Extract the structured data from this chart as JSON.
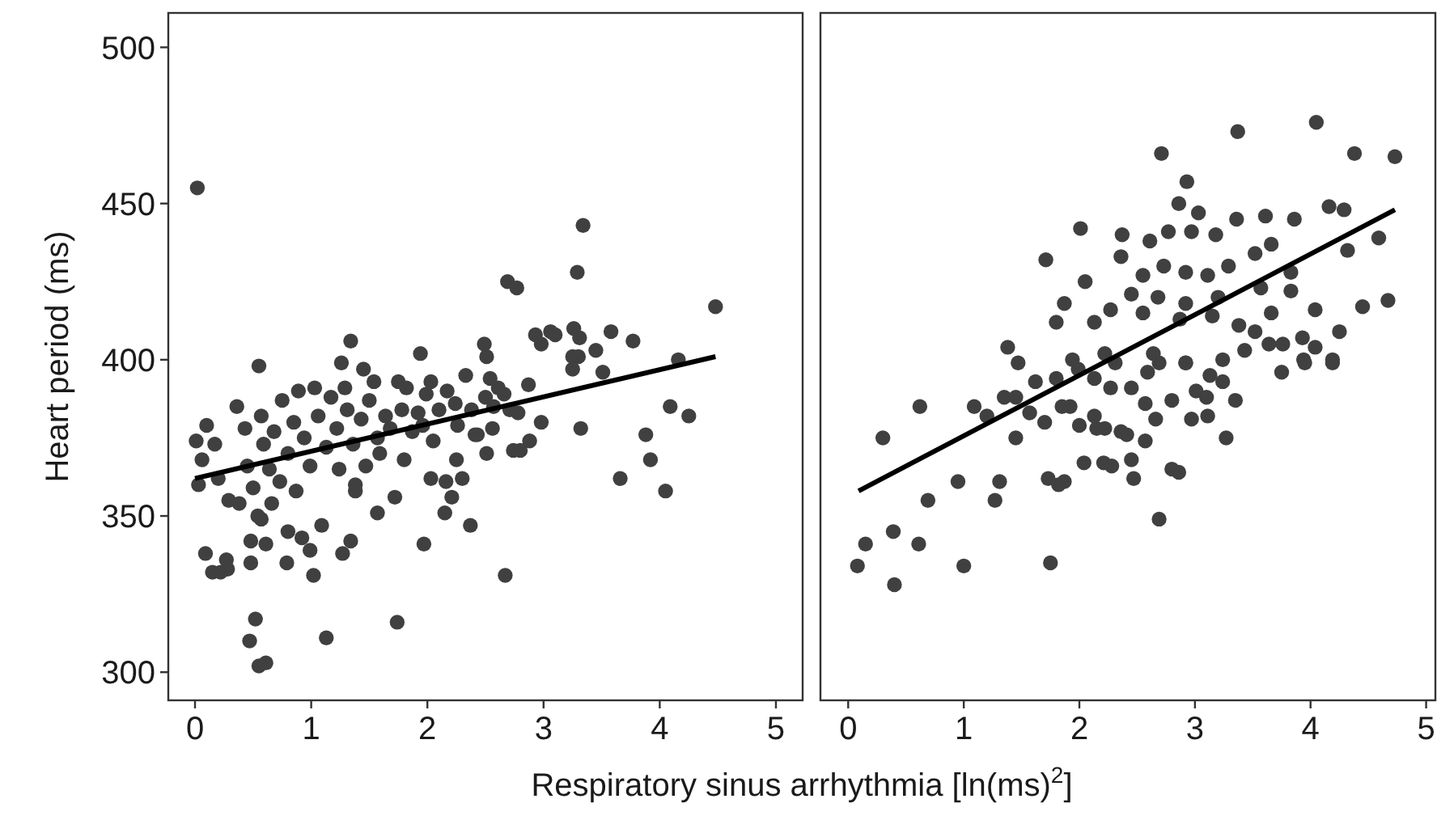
{
  "chart_data": [
    {
      "type": "scatter",
      "ylabel": "Heart period (ms)",
      "xlabel": "Respiratory sinus arrhythmia [ln(ms)$^{2}$]",
      "xlim": [
        -0.23,
        5.23
      ],
      "xticks": [
        0,
        1,
        2,
        3,
        4,
        5
      ],
      "ylim": [
        291,
        511
      ],
      "yticks": [
        300,
        350,
        400,
        450,
        500
      ],
      "grid": false,
      "series": [
        {
          "marker": "circle",
          "color": "#404040",
          "x": [
            0.02,
            0.55,
            1.34,
            1.26,
            1.45,
            1.94,
            2.49,
            2.51,
            2.69,
            2.77,
            2.93,
            2.98,
            3.06,
            3.1,
            3.34,
            3.29,
            3.26,
            3.31,
            3.25,
            3.3,
            3.45,
            3.58,
            3.77,
            4.16,
            4.48,
            3.25,
            3.51,
            4.09,
            4.25,
            3.32,
            3.88,
            3.92,
            3.66,
            4.05,
            2.88,
            2.74,
            2.8,
            2.67,
            2.37,
            2.15,
            2.21,
            2.3,
            2.16,
            2.03,
            2.25,
            2.51,
            2.41,
            2.56,
            1.97,
            1.74,
            1.72,
            1.57,
            1.38,
            1.34,
            1.27,
            1.13,
            1.09,
            0.99,
            1.02,
            0.92,
            0.8,
            0.79,
            0.66,
            0.61,
            0.48,
            0.48,
            0.54,
            0.57,
            0.52,
            0.47,
            0.55,
            0.61,
            0.09,
            0.15,
            0.22,
            0.28,
            0.27,
            0.01,
            0.06,
            0.03,
            0.1,
            0.17,
            0.2,
            0.29,
            0.36,
            0.38,
            0.43,
            0.45,
            0.5,
            0.57,
            0.59,
            0.64,
            0.68,
            0.73,
            0.75,
            0.8,
            0.85,
            0.87,
            0.89,
            0.94,
            0.99,
            1.03,
            1.06,
            1.13,
            1.17,
            1.22,
            1.24,
            1.29,
            1.31,
            1.36,
            1.38,
            1.43,
            1.47,
            1.5,
            1.54,
            1.57,
            1.59,
            1.64,
            1.68,
            1.75,
            1.78,
            1.8,
            1.82,
            1.87,
            1.92,
            1.96,
            1.99,
            2.03,
            2.05,
            2.1,
            2.17,
            2.24,
            2.26,
            2.33,
            2.38,
            2.43,
            2.5,
            2.54,
            2.57,
            2.61,
            2.66,
            2.71,
            2.78,
            2.87,
            2.98
          ],
          "values": [
            455,
            398,
            406,
            399,
            397,
            402,
            405,
            401,
            425,
            423,
            408,
            405,
            409,
            408,
            443,
            428,
            410,
            407,
            401,
            401,
            403,
            409,
            406,
            400,
            417,
            397,
            396,
            385,
            382,
            378,
            376,
            368,
            362,
            358,
            374,
            371,
            371,
            331,
            347,
            351,
            356,
            362,
            361,
            362,
            368,
            370,
            376,
            378,
            341,
            316,
            356,
            351,
            358,
            342,
            338,
            311,
            347,
            339,
            331,
            343,
            345,
            335,
            354,
            341,
            342,
            335,
            350,
            349,
            317,
            310,
            302,
            303,
            338,
            332,
            332,
            333,
            336,
            374,
            368,
            360,
            379,
            373,
            362,
            355,
            385,
            354,
            378,
            366,
            359,
            382,
            373,
            365,
            377,
            361,
            387,
            370,
            380,
            358,
            390,
            375,
            366,
            391,
            382,
            372,
            388,
            378,
            365,
            391,
            384,
            373,
            360,
            381,
            366,
            387,
            393,
            375,
            370,
            382,
            378,
            393,
            384,
            368,
            391,
            377,
            383,
            379,
            389,
            393,
            374,
            384,
            390,
            386,
            379,
            395,
            384,
            376,
            388,
            394,
            385,
            391,
            389,
            384,
            383,
            392,
            380
          ]
        },
        {
          "type": "line",
          "color": "#000000",
          "x": [
            0,
            4.48
          ],
          "values": [
            362,
            401
          ]
        }
      ]
    },
    {
      "type": "scatter",
      "xlim": [
        -0.24,
        5.08
      ],
      "xticks": [
        0,
        1,
        2,
        3,
        4,
        5
      ],
      "ylim": [
        291,
        511
      ],
      "tick_labels": "x",
      "grid": false,
      "series": [
        {
          "marker": "circle",
          "color": "#404040",
          "x": [
            3.37,
            4.05,
            2.71,
            4.38,
            4.73,
            2.93,
            2.86,
            3.03,
            2.01,
            2.37,
            2.61,
            2.77,
            2.97,
            3.18,
            3.36,
            3.61,
            3.86,
            4.16,
            4.29,
            4.59,
            4.32,
            1.71,
            2.05,
            2.36,
            2.55,
            2.73,
            2.92,
            3.11,
            3.29,
            3.52,
            3.66,
            3.83,
            3.57,
            2.45,
            2.68,
            2.92,
            3.2,
            3.83,
            4.04,
            4.45,
            4.67,
            1.87,
            1.8,
            2.13,
            2.27,
            2.55,
            2.87,
            3.15,
            3.38,
            3.66,
            3.52,
            3.76,
            3.93,
            4.04,
            4.25,
            3.94,
            4.19,
            1.38,
            1.47,
            1.94,
            2.22,
            2.64,
            2.92,
            3.24,
            3.43,
            3.64,
            3.75,
            3.95,
            4.19,
            3.13,
            3.24,
            3.35,
            3.1,
            3.01,
            3.11,
            2.97,
            3.27,
            2.8,
            2.66,
            2.57,
            2.57,
            2.45,
            2.47,
            2.86,
            2.8,
            2.69,
            2.36,
            2.41,
            2.22,
            2.15,
            2.13,
            2.0,
            2.04,
            2.21,
            2.28,
            1.85,
            1.92,
            1.7,
            1.57,
            1.45,
            1.45,
            1.35,
            1.2,
            1.09,
            1.73,
            1.82,
            1.87,
            1.31,
            1.27,
            0.95,
            0.69,
            0.62,
            0.3,
            0.39,
            0.15,
            0.08,
            0.61,
            1.0,
            0.4,
            1.75,
            1.62,
            1.8,
            1.99,
            2.13,
            2.27,
            2.45,
            2.59,
            2.69,
            2.92,
            2.31
          ],
          "values": [
            473,
            476,
            466,
            466,
            465,
            457,
            450,
            447,
            442,
            440,
            438,
            441,
            441,
            440,
            445,
            446,
            445,
            449,
            448,
            439,
            435,
            432,
            425,
            433,
            427,
            430,
            428,
            427,
            430,
            434,
            437,
            428,
            423,
            421,
            420,
            418,
            420,
            422,
            416,
            417,
            419,
            418,
            412,
            412,
            416,
            415,
            413,
            414,
            411,
            415,
            409,
            405,
            407,
            404,
            409,
            400,
            400,
            404,
            399,
            400,
            402,
            402,
            399,
            400,
            403,
            405,
            396,
            399,
            399,
            395,
            393,
            387,
            388,
            390,
            382,
            381,
            375,
            387,
            381,
            386,
            374,
            368,
            362,
            364,
            365,
            349,
            377,
            376,
            378,
            378,
            382,
            379,
            367,
            367,
            366,
            385,
            385,
            380,
            383,
            375,
            388,
            388,
            382,
            385,
            362,
            360,
            361,
            361,
            355,
            361,
            355,
            385,
            375,
            345,
            341,
            334,
            341,
            334,
            328,
            335,
            393,
            394,
            397,
            394,
            391,
            391,
            396,
            399,
            399,
            399
          ]
        },
        {
          "type": "line",
          "color": "#000000",
          "x": [
            0.09,
            4.73
          ],
          "values": [
            358,
            448
          ]
        }
      ]
    }
  ]
}
